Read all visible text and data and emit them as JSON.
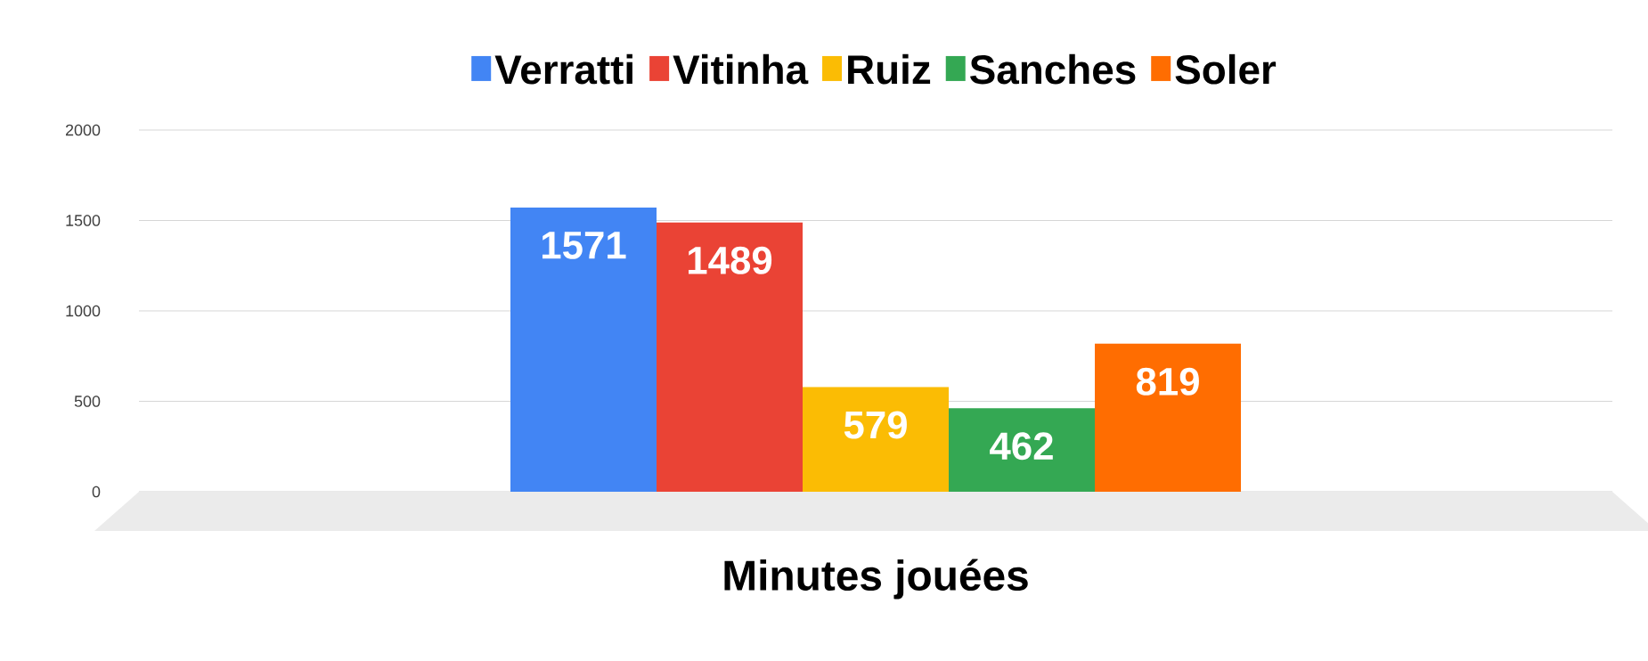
{
  "chart_data": {
    "type": "bar",
    "categories": [
      "Minutes jouées"
    ],
    "series": [
      {
        "name": "Verratti",
        "color": "#4285f4",
        "values": [
          1571
        ]
      },
      {
        "name": "Vitinha",
        "color": "#ea4335",
        "values": [
          1489
        ]
      },
      {
        "name": "Ruiz",
        "color": "#fbbc04",
        "values": [
          579
        ]
      },
      {
        "name": "Sanches",
        "color": "#34a853",
        "values": [
          462
        ]
      },
      {
        "name": "Soler",
        "color": "#ff6d01",
        "values": [
          819
        ]
      }
    ],
    "ylim": [
      0,
      2000
    ],
    "yticks": [
      0,
      500,
      1000,
      1500,
      2000
    ],
    "grid": "y",
    "legend": "top",
    "data_labels": true
  }
}
